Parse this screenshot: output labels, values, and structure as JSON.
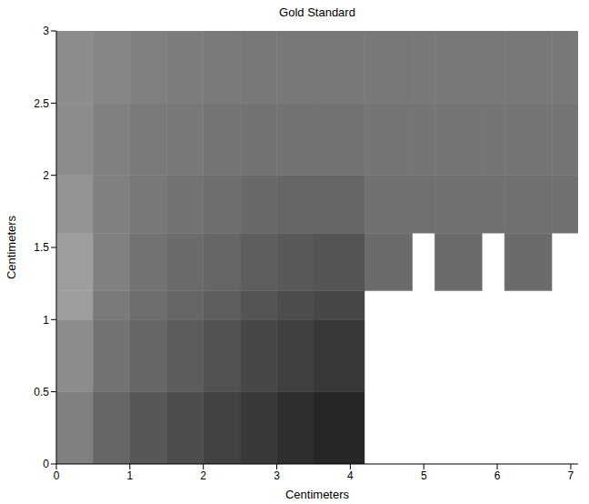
{
  "chart_data": {
    "type": "heatmap",
    "title": "Gold Standard",
    "x_label": "Centimeters",
    "y_label": "Centimeters",
    "xlim": [
      0,
      7.1
    ],
    "ylim": [
      0,
      3
    ],
    "xticks": [
      0,
      1,
      2,
      3,
      4,
      5,
      6,
      7
    ],
    "yticks": [
      0,
      0.5,
      1,
      1.5,
      2,
      2.5,
      3
    ],
    "grid": false,
    "x_edges": [
      0,
      0.5,
      1,
      1.5,
      2,
      2.5,
      3,
      3.5,
      4.2,
      4.85,
      5.15,
      5.8,
      6.1,
      6.75,
      7.1
    ],
    "y_edges": [
      0,
      0.5,
      1,
      1.2,
      1.6,
      2,
      2.5,
      3
    ],
    "zlim": [
      0,
      1
    ],
    "cells": [
      [
        0.5,
        0.4,
        0.34,
        0.3,
        0.26,
        0.22,
        0.18,
        0.15,
        1,
        1,
        1,
        1,
        1,
        1
      ],
      [
        0.55,
        0.45,
        0.4,
        0.36,
        0.32,
        0.28,
        0.25,
        0.22,
        1,
        1,
        1,
        1,
        1,
        1
      ],
      [
        0.62,
        0.48,
        0.43,
        0.4,
        0.37,
        0.33,
        0.3,
        0.28,
        1,
        1,
        1,
        1,
        1,
        1
      ],
      [
        0.62,
        0.5,
        0.45,
        0.42,
        0.4,
        0.37,
        0.35,
        0.33,
        0.42,
        1,
        0.42,
        1,
        0.42,
        1
      ],
      [
        0.58,
        0.5,
        0.47,
        0.45,
        0.43,
        0.41,
        0.4,
        0.4,
        0.44,
        0.44,
        0.44,
        0.44,
        0.44,
        0.44
      ],
      [
        0.55,
        0.5,
        0.48,
        0.47,
        0.46,
        0.45,
        0.45,
        0.45,
        0.46,
        0.46,
        0.46,
        0.46,
        0.46,
        0.46
      ],
      [
        0.55,
        0.52,
        0.5,
        0.49,
        0.48,
        0.47,
        0.47,
        0.47,
        0.47,
        0.47,
        0.47,
        0.47,
        0.47,
        0.47
      ]
    ]
  }
}
